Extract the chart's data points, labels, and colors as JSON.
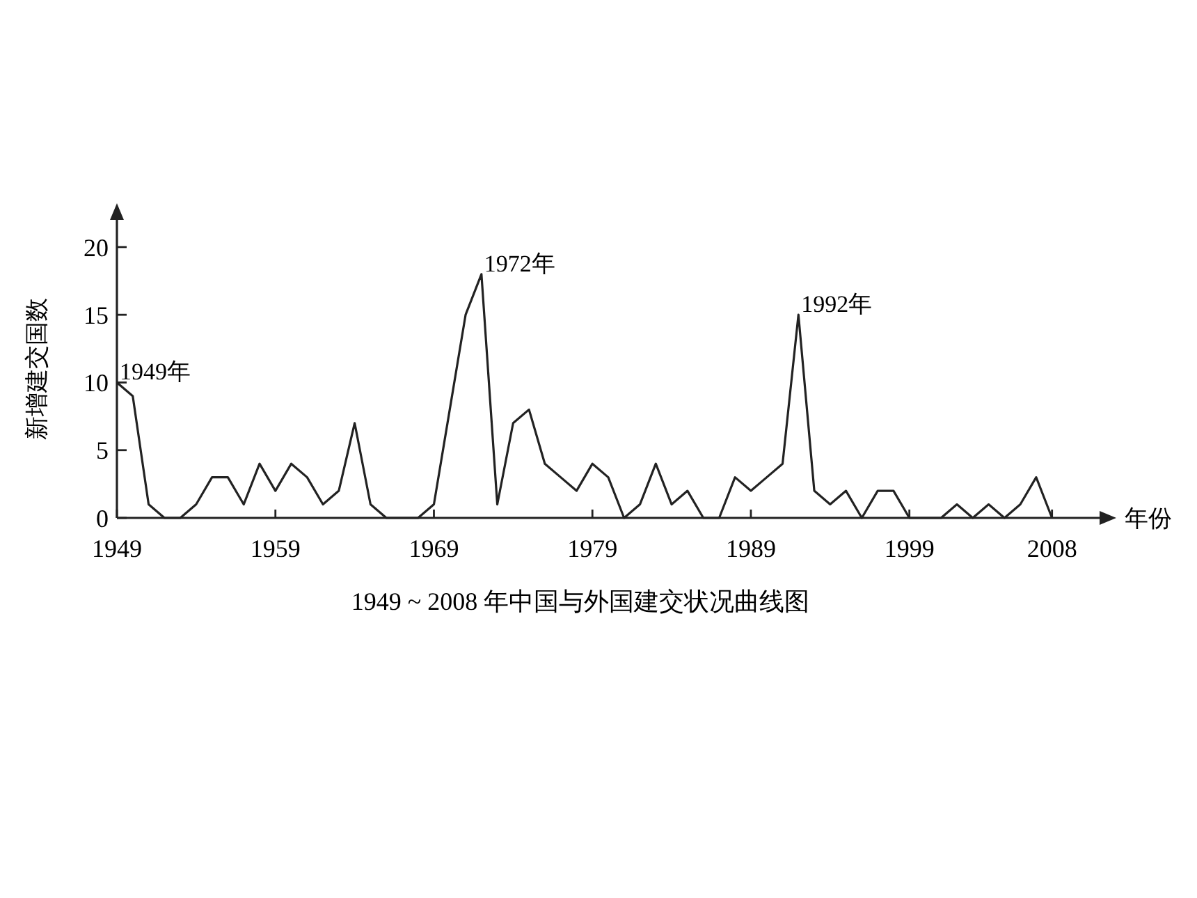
{
  "chart_data": {
    "type": "line",
    "title": "1949 ~ 2008 年中国与外国建交状况曲线图",
    "xlabel": "年份",
    "ylabel": "新增建交国数",
    "x": [
      1949,
      1950,
      1951,
      1952,
      1953,
      1954,
      1955,
      1956,
      1957,
      1958,
      1959,
      1960,
      1961,
      1962,
      1963,
      1964,
      1965,
      1966,
      1967,
      1968,
      1969,
      1970,
      1971,
      1972,
      1973,
      1974,
      1975,
      1976,
      1977,
      1978,
      1979,
      1980,
      1981,
      1982,
      1983,
      1984,
      1985,
      1986,
      1987,
      1988,
      1989,
      1990,
      1991,
      1992,
      1993,
      1994,
      1995,
      1996,
      1997,
      1998,
      1999,
      2000,
      2001,
      2002,
      2003,
      2004,
      2005,
      2006,
      2007,
      2008
    ],
    "series": [
      {
        "color": "#222222",
        "values": [
          10,
          9,
          1,
          0,
          0,
          1,
          3,
          3,
          1,
          4,
          2,
          4,
          3,
          1,
          2,
          7,
          1,
          0,
          0,
          0,
          1,
          8,
          15,
          18,
          1,
          7,
          8,
          4,
          3,
          2,
          4,
          3,
          0,
          1,
          4,
          1,
          2,
          0,
          0,
          3,
          2,
          3,
          4,
          15,
          2,
          1,
          2,
          0,
          2,
          2,
          0,
          0,
          0,
          1,
          0,
          1,
          0,
          1,
          3,
          0
        ]
      }
    ],
    "xlim": [
      1949,
      2011
    ],
    "ylim": [
      0,
      22
    ],
    "xticks": [
      1949,
      1959,
      1969,
      1979,
      1989,
      1999,
      2008
    ],
    "yticks": [
      0,
      5,
      10,
      15,
      20
    ],
    "grid": false,
    "marker": "none",
    "line_style": "solid",
    "annotations": [
      {
        "text": "1949年",
        "x": 1949,
        "y": 10
      },
      {
        "text": "1972年",
        "x": 1972,
        "y": 18
      },
      {
        "text": "1992年",
        "x": 1992,
        "y": 15
      }
    ]
  }
}
